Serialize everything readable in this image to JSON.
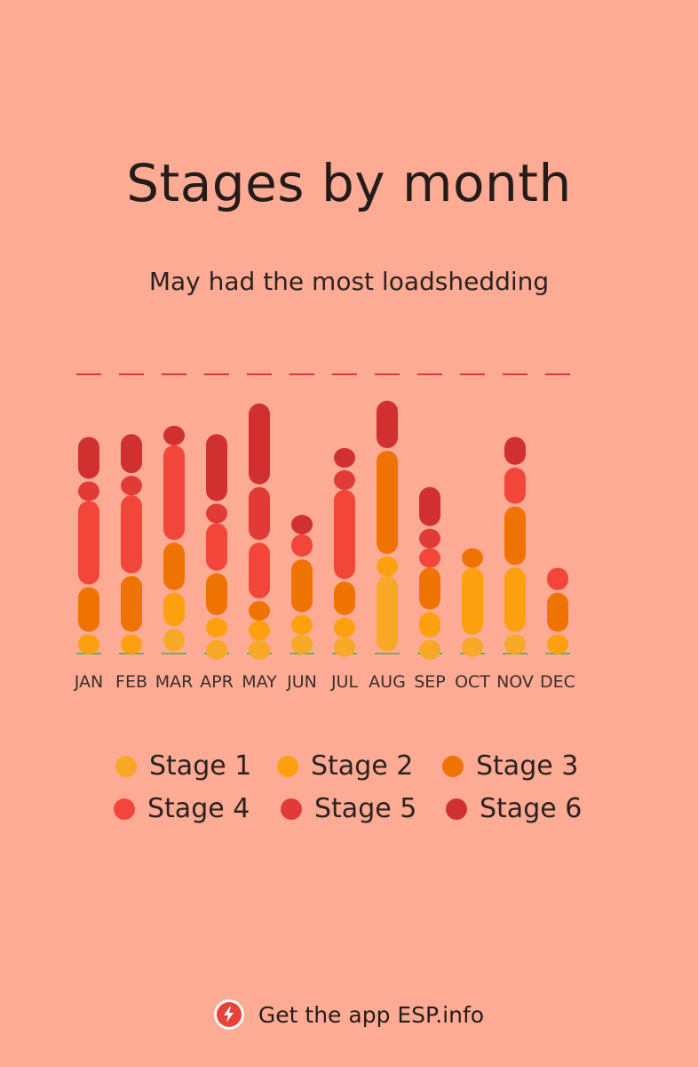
{
  "header": {
    "title": "Stages by month",
    "subtitle": "May had the most loadshedding"
  },
  "chart_data": {
    "type": "bar",
    "title": "Stages by month",
    "subtitle": "May had the most loadshedding",
    "categories": [
      "JAN",
      "FEB",
      "MAR",
      "APR",
      "MAY",
      "JUN",
      "JUL",
      "AUG",
      "SEP",
      "OCT",
      "NOV",
      "DEC"
    ],
    "colors": {
      "Stage 1": "#f7a826",
      "Stage 2": "#fca00f",
      "Stage 3": "#ef7303",
      "Stage 4": "#f2463a",
      "Stage 5": "#e03b37",
      "Stage 6": "#d03030"
    },
    "ymax_line_color": "#d63a33",
    "baseline_color": "#6fae5a",
    "series": [
      {
        "name": "Stage 1",
        "values": [
          0,
          0,
          9,
          5,
          5,
          7,
          6,
          28,
          5,
          6,
          7,
          0
        ]
      },
      {
        "name": "Stage 2",
        "values": [
          7,
          7,
          13,
          8,
          7,
          7,
          7,
          7,
          10,
          25,
          24,
          7
        ]
      },
      {
        "name": "Stage 3",
        "values": [
          17,
          21,
          18,
          16,
          7,
          20,
          13,
          38,
          16,
          7,
          22,
          15
        ]
      },
      {
        "name": "Stage 4",
        "values": [
          31,
          29,
          35,
          18,
          21,
          9,
          33,
          0,
          7,
          0,
          14,
          9
        ]
      },
      {
        "name": "Stage 5",
        "values": [
          7,
          7,
          0,
          7,
          20,
          0,
          7,
          0,
          7,
          0,
          0,
          0
        ]
      },
      {
        "name": "Stage 6",
        "values": [
          16,
          15,
          7,
          25,
          30,
          7,
          8,
          18,
          15,
          0,
          11,
          0
        ]
      }
    ],
    "ylim": [
      0,
      100
    ]
  },
  "legend": {
    "items": [
      {
        "label": "Stage 1",
        "color": "#f7a826"
      },
      {
        "label": "Stage 2",
        "color": "#fca00f"
      },
      {
        "label": "Stage 3",
        "color": "#ef7303"
      },
      {
        "label": "Stage 4",
        "color": "#f2463a"
      },
      {
        "label": "Stage 5",
        "color": "#e03b37"
      },
      {
        "label": "Stage 6",
        "color": "#d03030"
      }
    ]
  },
  "footer": {
    "text": "Get the app ESP.info",
    "icon": "lightning-bolt-icon"
  }
}
